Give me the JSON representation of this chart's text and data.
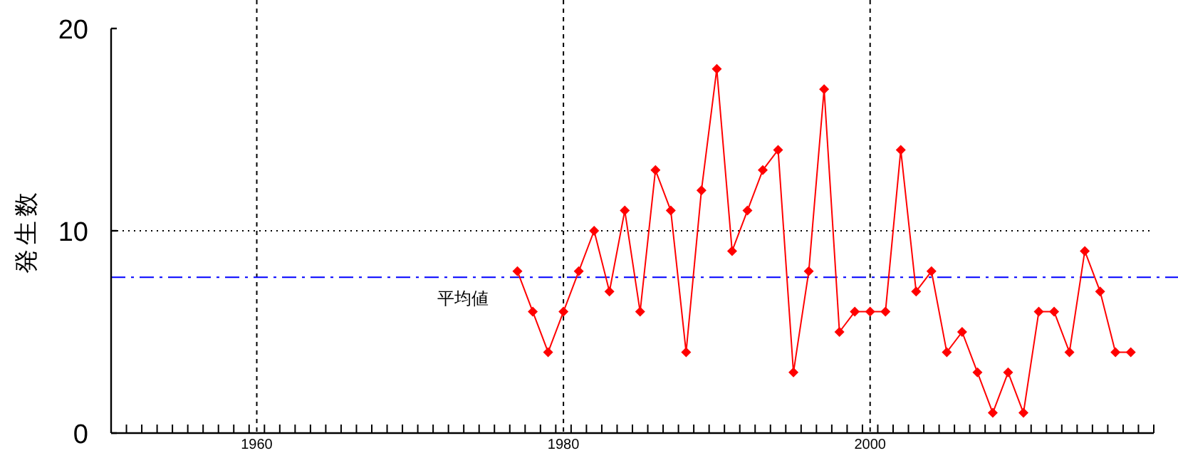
{
  "chart_data": {
    "type": "line",
    "ylabel": "発生数",
    "x": [
      1977,
      1978,
      1979,
      1980,
      1981,
      1982,
      1983,
      1984,
      1985,
      1986,
      1987,
      1988,
      1989,
      1990,
      1991,
      1992,
      1993,
      1994,
      1995,
      1996,
      1997,
      1998,
      1999,
      2000,
      2001,
      2002,
      2003,
      2004,
      2005,
      2006,
      2007,
      2008,
      2009,
      2010,
      2011,
      2012,
      2013,
      2014,
      2015,
      2016,
      2017
    ],
    "series": [
      {
        "color": "#ff0000",
        "values": [
          8,
          6,
          4,
          6,
          8,
          10,
          7,
          11,
          6,
          13,
          11,
          4,
          12,
          18,
          9,
          11,
          13,
          14,
          3,
          8,
          17,
          5,
          6,
          6,
          6,
          14,
          7,
          8,
          4,
          5,
          3,
          1,
          3,
          1,
          6,
          6,
          4,
          9,
          7,
          4,
          4
        ]
      }
    ],
    "xlim": [
      1950.5,
      2018.5
    ],
    "xticks": [
      {
        "value": 1950.5,
        "label": null
      },
      {
        "value": 1951.5,
        "label": null
      },
      {
        "value": 1952.5,
        "label": null
      },
      {
        "value": 1953.5,
        "label": null
      },
      {
        "value": 1954.5,
        "label": null
      },
      {
        "value": 1955.5,
        "label": null
      },
      {
        "value": 1956.5,
        "label": null
      },
      {
        "value": 1957.5,
        "label": null
      },
      {
        "value": 1958.5,
        "label": null
      },
      {
        "value": 1959.5,
        "label": null
      },
      1960,
      {
        "value": 1960.5,
        "label": null
      },
      {
        "value": 1961.5,
        "label": null
      },
      {
        "value": 1962.5,
        "label": null
      },
      {
        "value": 1963.5,
        "label": null
      },
      {
        "value": 1964.5,
        "label": null
      },
      {
        "value": 1965.5,
        "label": null
      },
      {
        "value": 1966.5,
        "label": null
      },
      {
        "value": 1967.5,
        "label": null
      },
      {
        "value": 1968.5,
        "label": null
      },
      {
        "value": 1969.5,
        "label": null
      },
      {
        "value": 1970.5,
        "label": null
      },
      {
        "value": 1971.5,
        "label": null
      },
      {
        "value": 1972.5,
        "label": null
      },
      {
        "value": 1973.5,
        "label": null
      },
      {
        "value": 1974.5,
        "label": null
      },
      {
        "value": 1975.5,
        "label": null
      },
      {
        "value": 1976.5,
        "label": null
      },
      {
        "value": 1977.5,
        "label": null
      },
      {
        "value": 1978.5,
        "label": null
      },
      {
        "value": 1979.5,
        "label": null
      },
      1980,
      {
        "value": 1980.5,
        "label": null
      },
      {
        "value": 1981.5,
        "label": null
      },
      {
        "value": 1982.5,
        "label": null
      },
      {
        "value": 1983.5,
        "label": null
      },
      {
        "value": 1984.5,
        "label": null
      },
      {
        "value": 1985.5,
        "label": null
      },
      {
        "value": 1986.5,
        "label": null
      },
      {
        "value": 1987.5,
        "label": null
      },
      {
        "value": 1988.5,
        "label": null
      },
      {
        "value": 1989.5,
        "label": null
      },
      {
        "value": 1990.5,
        "label": null
      },
      {
        "value": 1991.5,
        "label": null
      },
      {
        "value": 1992.5,
        "label": null
      },
      {
        "value": 1993.5,
        "label": null
      },
      {
        "value": 1994.5,
        "label": null
      },
      {
        "value": 1995.5,
        "label": null
      },
      {
        "value": 1996.5,
        "label": null
      },
      {
        "value": 1997.5,
        "label": null
      },
      {
        "value": 1998.5,
        "label": null
      },
      {
        "value": 1999.5,
        "label": null
      },
      2000,
      {
        "value": 2000.5,
        "label": null
      },
      {
        "value": 2001.5,
        "label": null
      },
      {
        "value": 2002.5,
        "label": null
      },
      {
        "value": 2003.5,
        "label": null
      },
      {
        "value": 2004.5,
        "label": null
      },
      {
        "value": 2005.5,
        "label": null
      },
      {
        "value": 2006.5,
        "label": null
      },
      {
        "value": 2007.5,
        "label": null
      },
      {
        "value": 2008.5,
        "label": null
      },
      {
        "value": 2009.5,
        "label": null
      },
      {
        "value": 2010.5,
        "label": null
      },
      {
        "value": 2011.5,
        "label": null
      },
      {
        "value": 2012.5,
        "label": null
      },
      {
        "value": 2013.5,
        "label": null
      },
      {
        "value": 2014.5,
        "label": null
      },
      {
        "value": 2015.5,
        "label": null
      },
      {
        "value": 2016.5,
        "label": null
      },
      {
        "value": 2017.5,
        "label": null
      },
      {
        "value": 2018.5,
        "label": null
      }
    ],
    "ylim": [
      0,
      20
    ],
    "yticks": [
      0,
      10,
      20
    ],
    "ref_lines": [
      {
        "axis": "y",
        "value": 7.7,
        "label": "平均値",
        "color": "#0000ff",
        "line_style": "dashed"
      }
    ],
    "grid": true,
    "marker": "diamond",
    "line_style": "solid"
  }
}
